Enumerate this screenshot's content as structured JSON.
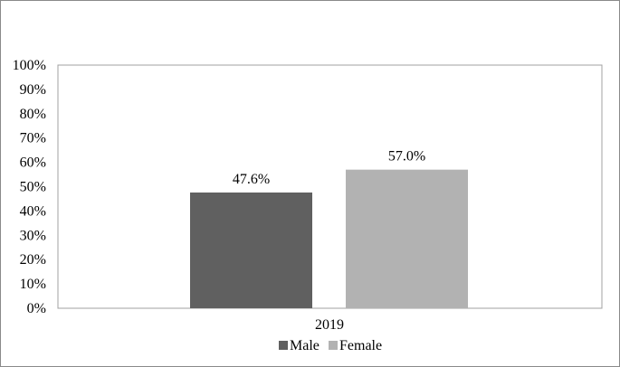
{
  "chart_data": {
    "type": "bar",
    "categories": [
      "2019"
    ],
    "series": [
      {
        "name": "Male",
        "values": [
          47.6
        ],
        "color": "#606060",
        "label": "47.6%"
      },
      {
        "name": "Female",
        "values": [
          57.0
        ],
        "color": "#b2b2b2",
        "label": "57.0%"
      }
    ],
    "title": "",
    "xlabel": "",
    "ylabel": "",
    "ylim": [
      0,
      100
    ],
    "yticks": [
      "0%",
      "10%",
      "20%",
      "30%",
      "40%",
      "50%",
      "60%",
      "70%",
      "80%",
      "90%",
      "100%"
    ],
    "grid": false,
    "legend": "bottom"
  }
}
